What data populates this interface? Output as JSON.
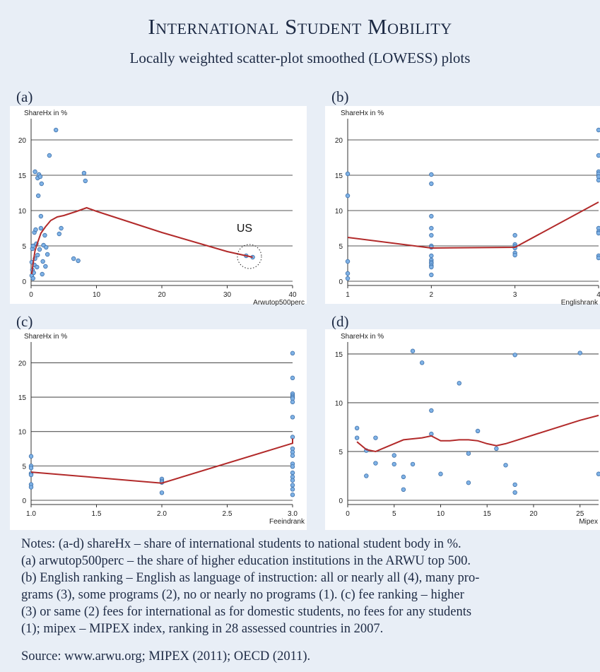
{
  "figure": {
    "title": "International Student Mobility",
    "subtitle": "Locally weighted scatter-plot smoothed (LOWESS) plots"
  },
  "colors": {
    "point": "#7fb2e6",
    "point_edge": "#3d6fa8",
    "line": "#b22a2a",
    "grid": "#555555",
    "plot_bg": "#ffffff",
    "page_bg": "#e8eef6"
  },
  "chart_data": [
    {
      "panel": "(a)",
      "type": "scatter",
      "ylabel": "ShareHx in %",
      "xlabel": "Arwutop500perc",
      "xlim": [
        0,
        40
      ],
      "ylim": [
        0,
        22
      ],
      "xticks": [
        "0",
        "10",
        "20",
        "30",
        "40"
      ],
      "yticks": [
        "0",
        "5",
        "10",
        "15",
        "20"
      ],
      "annotation": "US",
      "points": [
        [
          0.1,
          0.8
        ],
        [
          0.2,
          1.6
        ],
        [
          0.3,
          0.4
        ],
        [
          0.1,
          2.7
        ],
        [
          0.4,
          1.2
        ],
        [
          0.5,
          2.3
        ],
        [
          0.2,
          4.6
        ],
        [
          0.3,
          5.0
        ],
        [
          0.6,
          3.2
        ],
        [
          0.5,
          6.9
        ],
        [
          0.7,
          7.3
        ],
        [
          0.8,
          5.3
        ],
        [
          0.9,
          2.0
        ],
        [
          0.6,
          15.5
        ],
        [
          1.0,
          14.6
        ],
        [
          1.2,
          15.1
        ],
        [
          1.4,
          14.8
        ],
        [
          1.5,
          9.2
        ],
        [
          1.6,
          13.8
        ],
        [
          1.1,
          12.1
        ],
        [
          1.3,
          4.5
        ],
        [
          1.5,
          7.5
        ],
        [
          1.7,
          1.0
        ],
        [
          1.9,
          5.1
        ],
        [
          2.1,
          6.5
        ],
        [
          2.3,
          4.8
        ],
        [
          2.5,
          3.8
        ],
        [
          2.2,
          2.1
        ],
        [
          1.0,
          3.7
        ],
        [
          1.8,
          2.8
        ],
        [
          2.8,
          17.8
        ],
        [
          3.8,
          21.4
        ],
        [
          4.3,
          6.7
        ],
        [
          4.6,
          7.5
        ],
        [
          6.5,
          3.2
        ],
        [
          7.2,
          2.9
        ],
        [
          8.1,
          15.3
        ],
        [
          8.3,
          14.2
        ],
        [
          32.9,
          3.6
        ],
        [
          33.9,
          3.4
        ]
      ],
      "lowess": [
        [
          0.1,
          1.0
        ],
        [
          0.3,
          2.5
        ],
        [
          0.6,
          4.3
        ],
        [
          1.0,
          5.5
        ],
        [
          1.5,
          6.8
        ],
        [
          2.2,
          7.7
        ],
        [
          3.0,
          8.6
        ],
        [
          4.0,
          9.1
        ],
        [
          5.0,
          9.3
        ],
        [
          6.0,
          9.6
        ],
        [
          7.0,
          9.9
        ],
        [
          8.5,
          10.4
        ],
        [
          10.0,
          9.9
        ],
        [
          20.0,
          6.9
        ],
        [
          30.0,
          4.2
        ],
        [
          33.9,
          3.4
        ]
      ]
    },
    {
      "panel": "(b)",
      "type": "scatter",
      "ylabel": "ShareHx in %",
      "xlabel": "Englishrank",
      "xlim": [
        1,
        4
      ],
      "ylim": [
        0,
        22
      ],
      "xticks": [
        "1",
        "2",
        "3",
        "4"
      ],
      "yticks": [
        "0",
        "5",
        "10",
        "15",
        "20"
      ],
      "points": [
        [
          1,
          15.2
        ],
        [
          1,
          12.1
        ],
        [
          1,
          2.8
        ],
        [
          1,
          1.1
        ],
        [
          1,
          0.4
        ],
        [
          2,
          15.1
        ],
        [
          2,
          13.8
        ],
        [
          2,
          9.2
        ],
        [
          2,
          7.5
        ],
        [
          2,
          6.5
        ],
        [
          2,
          5.0
        ],
        [
          2,
          4.8
        ],
        [
          2,
          3.6
        ],
        [
          2,
          3.0
        ],
        [
          2,
          2.7
        ],
        [
          2,
          2.5
        ],
        [
          2,
          2.2
        ],
        [
          2,
          2.0
        ],
        [
          2,
          0.9
        ],
        [
          3,
          6.5
        ],
        [
          3,
          5.2
        ],
        [
          3,
          4.9
        ],
        [
          3,
          4.7
        ],
        [
          3,
          4.0
        ],
        [
          3,
          3.7
        ],
        [
          4,
          21.4
        ],
        [
          4,
          17.8
        ],
        [
          4,
          15.5
        ],
        [
          4,
          15.2
        ],
        [
          4,
          14.8
        ],
        [
          4,
          14.3
        ],
        [
          4,
          7.5
        ],
        [
          4,
          7.0
        ],
        [
          4,
          6.8
        ],
        [
          4,
          3.6
        ],
        [
          4,
          3.3
        ]
      ],
      "lowess": [
        [
          1,
          6.2
        ],
        [
          2,
          4.7
        ],
        [
          3,
          4.8
        ],
        [
          4,
          11.2
        ]
      ]
    },
    {
      "panel": "(c)",
      "type": "scatter",
      "ylabel": "ShareHx in %",
      "xlabel": "Feeindrank",
      "xlim": [
        1,
        3
      ],
      "ylim": [
        0,
        22
      ],
      "xticks": [
        "1.0",
        "1.5",
        "2.0",
        "2.5",
        "3.0"
      ],
      "yticks": [
        "0",
        "5",
        "10",
        "15",
        "20"
      ],
      "points": [
        [
          1,
          6.4
        ],
        [
          1,
          5.0
        ],
        [
          1,
          4.7
        ],
        [
          1,
          3.9
        ],
        [
          1,
          3.7
        ],
        [
          1,
          2.3
        ],
        [
          1,
          1.9
        ],
        [
          2,
          3.1
        ],
        [
          2,
          2.8
        ],
        [
          2,
          2.6
        ],
        [
          2,
          1.1
        ],
        [
          3,
          21.4
        ],
        [
          3,
          17.8
        ],
        [
          3,
          15.5
        ],
        [
          3,
          15.2
        ],
        [
          3,
          15.0
        ],
        [
          3,
          14.8
        ],
        [
          3,
          14.3
        ],
        [
          3,
          12.1
        ],
        [
          3,
          9.2
        ],
        [
          3,
          7.5
        ],
        [
          3,
          7.0
        ],
        [
          3,
          6.5
        ],
        [
          3,
          5.3
        ],
        [
          3,
          4.9
        ],
        [
          3,
          4.0
        ],
        [
          3,
          3.4
        ],
        [
          3,
          2.9
        ],
        [
          3,
          2.2
        ],
        [
          3,
          1.6
        ],
        [
          3,
          0.8
        ]
      ],
      "lowess": [
        [
          1,
          4.1
        ],
        [
          2,
          2.5
        ],
        [
          3,
          8.3
        ],
        [
          3,
          9.0
        ]
      ]
    },
    {
      "panel": "(d)",
      "type": "scatter",
      "ylabel": "ShareHx in %",
      "xlabel": "Mipex",
      "xlim": [
        0,
        27
      ],
      "ylim": [
        0,
        15.5
      ],
      "xticks": [
        "0",
        "5",
        "10",
        "15",
        "20",
        "25"
      ],
      "yticks": [
        "0",
        "5",
        "10",
        "15"
      ],
      "points": [
        [
          1,
          7.4
        ],
        [
          1,
          6.4
        ],
        [
          2,
          5.1
        ],
        [
          2,
          2.5
        ],
        [
          3,
          6.4
        ],
        [
          3,
          3.8
        ],
        [
          5,
          4.6
        ],
        [
          5,
          3.7
        ],
        [
          6,
          2.4
        ],
        [
          6,
          1.1
        ],
        [
          7,
          15.3
        ],
        [
          7,
          3.7
        ],
        [
          8,
          14.1
        ],
        [
          9,
          9.2
        ],
        [
          9,
          6.8
        ],
        [
          10,
          2.7
        ],
        [
          12,
          12.0
        ],
        [
          13,
          4.8
        ],
        [
          13,
          1.8
        ],
        [
          14,
          7.1
        ],
        [
          16,
          5.3
        ],
        [
          17,
          3.6
        ],
        [
          18,
          14.9
        ],
        [
          18,
          1.6
        ],
        [
          18,
          0.8
        ],
        [
          25,
          15.1
        ],
        [
          27,
          2.7
        ]
      ],
      "lowess": [
        [
          1,
          6.0
        ],
        [
          2,
          5.2
        ],
        [
          3,
          5.0
        ],
        [
          4,
          5.4
        ],
        [
          5,
          5.8
        ],
        [
          6,
          6.2
        ],
        [
          7,
          6.3
        ],
        [
          8,
          6.4
        ],
        [
          9,
          6.6
        ],
        [
          10,
          6.1
        ],
        [
          11,
          6.1
        ],
        [
          12,
          6.2
        ],
        [
          13,
          6.2
        ],
        [
          14,
          6.1
        ],
        [
          15,
          5.8
        ],
        [
          16,
          5.6
        ],
        [
          17,
          5.8
        ],
        [
          18,
          6.1
        ],
        [
          20,
          6.7
        ],
        [
          25,
          8.2
        ],
        [
          27,
          8.7
        ]
      ]
    }
  ],
  "notes": {
    "lines": [
      "Notes: (a-d) shareHx – share of international students to national student body in %.",
      "(a) arwutop500perc – the share of higher education institutions in the ARWU top 500.",
      "(b) English ranking – English as language of instruction: all or nearly all (4), many pro-",
      "grams (3), some programs (2), no or nearly no programs (1). (c) fee ranking – higher",
      "(3) or same (2) fees for international as for domestic students, no fees for any students",
      "(1); mipex – MIPEX index, ranking in 28 assessed countries in 2007."
    ],
    "source": "Source: www.arwu.org; MIPEX (2011); OECD (2011)."
  }
}
